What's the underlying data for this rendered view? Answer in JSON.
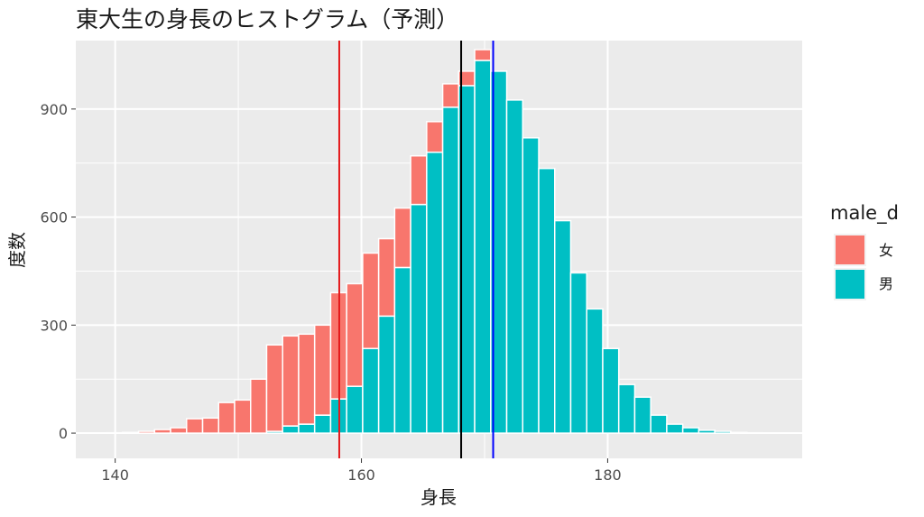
{
  "chart_data": {
    "type": "bar",
    "title": "東大生の身長のヒストグラム（予測）",
    "xlabel": "身長",
    "ylabel": "度数",
    "xlim": [
      136.8,
      195.8
    ],
    "ylim": [
      -70,
      1090
    ],
    "x_ticks": [
      140,
      160,
      180
    ],
    "y_ticks": [
      0,
      300,
      600,
      900
    ],
    "bin_width": 1.3,
    "bin_starts": [
      139.3,
      140.6,
      141.9,
      143.2,
      144.5,
      145.8,
      147.1,
      148.4,
      149.7,
      151.0,
      152.3,
      153.6,
      154.9,
      156.2,
      157.5,
      158.8,
      160.1,
      161.4,
      162.7,
      164.0,
      165.3,
      166.6,
      167.9,
      169.2,
      170.5,
      171.8,
      173.1,
      174.4,
      175.7,
      177.0,
      178.3,
      179.6,
      180.9,
      182.2,
      183.5,
      184.8,
      186.1,
      187.4,
      188.7,
      190.0,
      191.3,
      192.6
    ],
    "series": [
      {
        "name": "男",
        "color": "#00BFC4",
        "values": [
          0,
          0,
          0,
          0,
          0,
          0,
          0,
          0,
          0,
          0,
          5,
          20,
          25,
          50,
          95,
          130,
          235,
          325,
          460,
          635,
          780,
          905,
          965,
          1035,
          1005,
          925,
          820,
          735,
          590,
          445,
          345,
          235,
          135,
          100,
          50,
          25,
          15,
          8,
          5,
          2,
          1,
          0
        ]
      },
      {
        "name": "女",
        "color": "#F8766D",
        "values": [
          1,
          2,
          5,
          10,
          15,
          40,
          42,
          85,
          92,
          150,
          240,
          250,
          250,
          250,
          295,
          285,
          265,
          215,
          165,
          135,
          85,
          65,
          40,
          30,
          0,
          0,
          0,
          0,
          0,
          0,
          0,
          0,
          0,
          0,
          0,
          0,
          0,
          0,
          0,
          0,
          0,
          0
        ]
      }
    ],
    "vlines": [
      {
        "x": 158.2,
        "color": "#E31A1C"
      },
      {
        "x": 168.1,
        "color": "#000000"
      },
      {
        "x": 170.7,
        "color": "#0000FF"
      }
    ],
    "legend": {
      "title": "male_d",
      "position": "right",
      "entries": [
        {
          "label": "女",
          "color": "#F8766D"
        },
        {
          "label": "男",
          "color": "#00BFC4"
        }
      ]
    },
    "grid": true
  }
}
